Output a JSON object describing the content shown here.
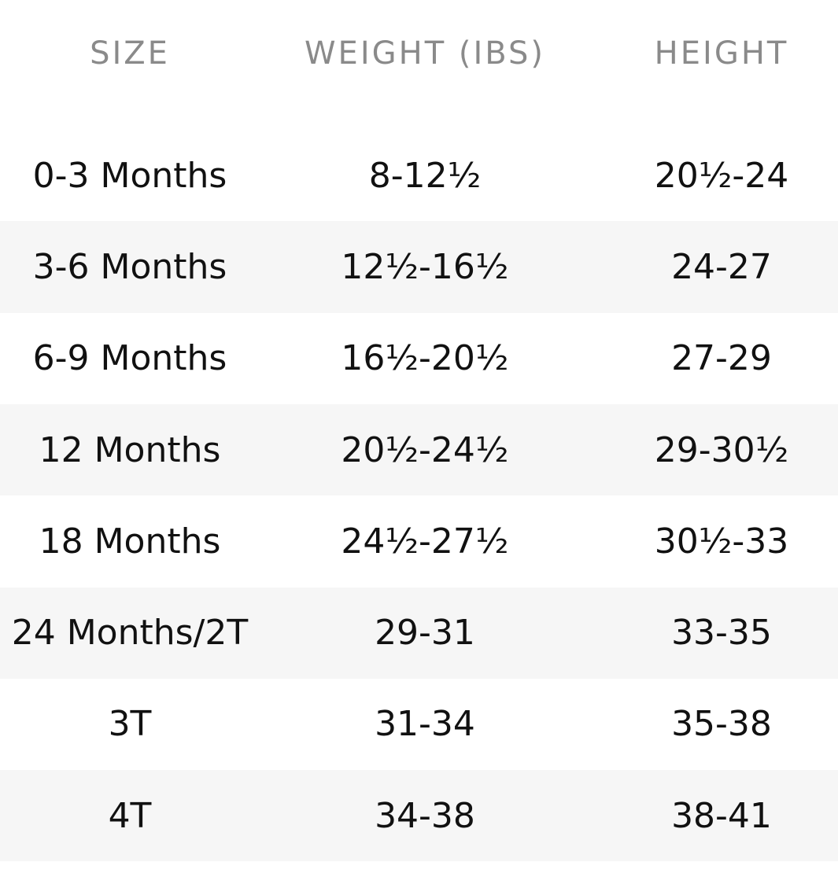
{
  "table": {
    "headers": [
      "SIZE",
      "WEIGHT (IBS)",
      "HEIGHT"
    ],
    "rows": [
      [
        "0-3 Months",
        "8-12½",
        "20½-24"
      ],
      [
        "3-6 Months",
        "12½-16½",
        "24-27"
      ],
      [
        "6-9 Months",
        "16½-20½",
        "27-29"
      ],
      [
        "12 Months",
        "20½-24½",
        "29-30½"
      ],
      [
        "18 Months",
        "24½-27½",
        "30½-33"
      ],
      [
        "24 Months/2T",
        "29-31",
        "33-35"
      ],
      [
        "3T",
        "31-34",
        "35-38"
      ],
      [
        "4T",
        "34-38",
        "38-41"
      ]
    ]
  }
}
